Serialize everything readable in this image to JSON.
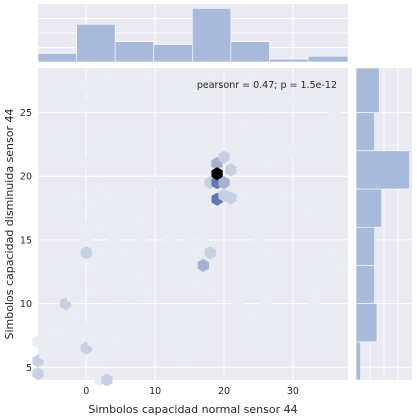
{
  "chart_data": {
    "type": "hexbin",
    "xlabel": "Simbolos capacidad normal sensor 44",
    "ylabel": "Simbolos capacidad disminuida sensor 44",
    "annotation": "pearsonr = 0.47; p = 1.5e-12",
    "xlim": [
      -7,
      38
    ],
    "ylim": [
      4,
      28.5
    ],
    "xticks": [
      0,
      10,
      20,
      30
    ],
    "yticks": [
      5,
      10,
      15,
      20,
      25
    ],
    "grid": true,
    "colors": {
      "background": "#eaeaf2",
      "hex_light": "#e8edf5",
      "hex_dark": "#3c5a9a",
      "hex_max": "#000000",
      "marginal_bar": "#a4b6d8",
      "grid": "#ffffff"
    },
    "hexbins": [
      {
        "x": -7,
        "y": 4.5,
        "count": 2
      },
      {
        "x": -7,
        "y": 5.5,
        "count": 2
      },
      {
        "x": -7,
        "y": 7.0,
        "count": 1
      },
      {
        "x": -6,
        "y": 6.0,
        "count": 1
      },
      {
        "x": -5,
        "y": 7.5,
        "count": 1
      },
      {
        "x": -4,
        "y": 8.0,
        "count": 1
      },
      {
        "x": -3,
        "y": 8.0,
        "count": 1
      },
      {
        "x": -2,
        "y": 9.0,
        "count": 1
      },
      {
        "x": -1,
        "y": 9.0,
        "count": 1
      },
      {
        "x": -3,
        "y": 10.0,
        "count": 2
      },
      {
        "x": -2,
        "y": 10.5,
        "count": 1
      },
      {
        "x": -1,
        "y": 10.5,
        "count": 1
      },
      {
        "x": -1,
        "y": 13.0,
        "count": 1
      },
      {
        "x": -1,
        "y": 17.0,
        "count": 1
      },
      {
        "x": -1,
        "y": 18.5,
        "count": 1
      },
      {
        "x": 0,
        "y": 7.0,
        "count": 1
      },
      {
        "x": 0,
        "y": 6.5,
        "count": 2
      },
      {
        "x": 0,
        "y": 8.0,
        "count": 1
      },
      {
        "x": 0,
        "y": 14.0,
        "count": 2
      },
      {
        "x": 0,
        "y": 15.0,
        "count": 1
      },
      {
        "x": 0,
        "y": 16.0,
        "count": 1
      },
      {
        "x": 0,
        "y": 21.0,
        "count": 1
      },
      {
        "x": 0,
        "y": 25.5,
        "count": 1
      },
      {
        "x": 0,
        "y": 27.0,
        "count": 1
      },
      {
        "x": 1,
        "y": 5.5,
        "count": 1
      },
      {
        "x": 1,
        "y": 7.0,
        "count": 1
      },
      {
        "x": 1,
        "y": 11.0,
        "count": 1
      },
      {
        "x": 1,
        "y": 13.0,
        "count": 1
      },
      {
        "x": 1,
        "y": 18.0,
        "count": 1
      },
      {
        "x": 2,
        "y": 14.0,
        "count": 1
      },
      {
        "x": 2,
        "y": 16.0,
        "count": 1
      },
      {
        "x": 2,
        "y": 19.0,
        "count": 1
      },
      {
        "x": 2,
        "y": 4.0,
        "count": 1
      },
      {
        "x": 3,
        "y": 4.0,
        "count": 2
      },
      {
        "x": 3,
        "y": 18.5,
        "count": 1
      },
      {
        "x": 3,
        "y": 28.0,
        "count": 1
      },
      {
        "x": 4,
        "y": 7.0,
        "count": 1
      },
      {
        "x": 4,
        "y": 15.0,
        "count": 1
      },
      {
        "x": 5,
        "y": 14.0,
        "count": 1
      },
      {
        "x": 5,
        "y": 7.0,
        "count": 1
      },
      {
        "x": 5,
        "y": 10.5,
        "count": 1
      },
      {
        "x": 6,
        "y": 27.0,
        "count": 1
      },
      {
        "x": 8,
        "y": 8.0,
        "count": 1
      },
      {
        "x": 8,
        "y": 12.0,
        "count": 1
      },
      {
        "x": 8,
        "y": 15.0,
        "count": 1
      },
      {
        "x": 8,
        "y": 16.5,
        "count": 1
      },
      {
        "x": 9,
        "y": 10.5,
        "count": 1
      },
      {
        "x": 9,
        "y": 11.0,
        "count": 1
      },
      {
        "x": 9,
        "y": 8.0,
        "count": 1
      },
      {
        "x": 9,
        "y": 28.0,
        "count": 1
      },
      {
        "x": 10,
        "y": 19.5,
        "count": 1
      },
      {
        "x": 12,
        "y": 15.0,
        "count": 1
      },
      {
        "x": 13,
        "y": 19.0,
        "count": 1
      },
      {
        "x": 13,
        "y": 23.0,
        "count": 1
      },
      {
        "x": 13,
        "y": 28.0,
        "count": 1
      },
      {
        "x": 14,
        "y": 5.5,
        "count": 1
      },
      {
        "x": 14,
        "y": 12.0,
        "count": 1
      },
      {
        "x": 15,
        "y": 15.0,
        "count": 1
      },
      {
        "x": 16,
        "y": 11.5,
        "count": 1
      },
      {
        "x": 16,
        "y": 14.0,
        "count": 1
      },
      {
        "x": 17,
        "y": 15.0,
        "count": 1
      },
      {
        "x": 16,
        "y": 27.0,
        "count": 1
      },
      {
        "x": 17,
        "y": 13.0,
        "count": 3
      },
      {
        "x": 18,
        "y": 14.0,
        "count": 2
      },
      {
        "x": 18,
        "y": 19.5,
        "count": 2
      },
      {
        "x": 18,
        "y": 11.0,
        "count": 1
      },
      {
        "x": 18,
        "y": 28.0,
        "count": 1
      },
      {
        "x": 19,
        "y": 21.0,
        "count": 3
      },
      {
        "x": 19,
        "y": 19.5,
        "count": 5
      },
      {
        "x": 19,
        "y": 18.2,
        "count": 5
      },
      {
        "x": 19,
        "y": 20.2,
        "count": 10
      },
      {
        "x": 20,
        "y": 19.5,
        "count": 3
      },
      {
        "x": 20,
        "y": 21.5,
        "count": 2
      },
      {
        "x": 20,
        "y": 18.5,
        "count": 2
      },
      {
        "x": 21,
        "y": 18.3,
        "count": 2
      },
      {
        "x": 21,
        "y": 20.5,
        "count": 2
      },
      {
        "x": 21,
        "y": 26.0,
        "count": 1
      },
      {
        "x": 22,
        "y": 10.0,
        "count": 1
      },
      {
        "x": 23,
        "y": 24.0,
        "count": 1
      },
      {
        "x": 23,
        "y": 18.5,
        "count": 1
      },
      {
        "x": 24,
        "y": 28.0,
        "count": 1
      },
      {
        "x": 24,
        "y": 9.0,
        "count": 1
      },
      {
        "x": 25,
        "y": 22.0,
        "count": 1
      },
      {
        "x": 25,
        "y": 15.0,
        "count": 1
      },
      {
        "x": 26,
        "y": 21.0,
        "count": 1
      },
      {
        "x": 26,
        "y": 10.0,
        "count": 1
      },
      {
        "x": 26,
        "y": 14.0,
        "count": 1
      },
      {
        "x": 27,
        "y": 24.0,
        "count": 1
      },
      {
        "x": 27,
        "y": 16.0,
        "count": 1
      },
      {
        "x": 28,
        "y": 27.0,
        "count": 1
      },
      {
        "x": 28,
        "y": 8.5,
        "count": 1
      },
      {
        "x": 29,
        "y": 18.5,
        "count": 1
      },
      {
        "x": 30,
        "y": 22.0,
        "count": 1
      },
      {
        "x": 30,
        "y": 26.0,
        "count": 1
      },
      {
        "x": 32,
        "y": 17.0,
        "count": 1
      },
      {
        "x": 32,
        "y": 8.0,
        "count": 1
      },
      {
        "x": 33,
        "y": 10.0,
        "count": 1
      },
      {
        "x": 33,
        "y": 11.0,
        "count": 1
      },
      {
        "x": 34,
        "y": 12.0,
        "count": 1
      },
      {
        "x": 35,
        "y": 11.0,
        "count": 1
      },
      {
        "x": 35,
        "y": 27.0,
        "count": 1
      },
      {
        "x": 36,
        "y": 14.0,
        "count": 1
      },
      {
        "x": 36,
        "y": 25.0,
        "count": 1
      },
      {
        "x": 37,
        "y": 13.0,
        "count": 1
      }
    ],
    "marginal_x": {
      "bin_edges": [
        -7,
        -1.4,
        4.2,
        9.8,
        15.4,
        21,
        26.6,
        32.2,
        38
      ],
      "values": [
        6,
        26,
        14,
        12,
        37,
        14,
        2,
        4
      ],
      "max": 40
    },
    "marginal_y": {
      "bin_edges": [
        4,
        7,
        10,
        13,
        16,
        19,
        22,
        25,
        28.5
      ],
      "values": [
        4,
        18,
        16,
        16,
        22,
        46,
        16,
        20
      ],
      "max": 48
    }
  }
}
